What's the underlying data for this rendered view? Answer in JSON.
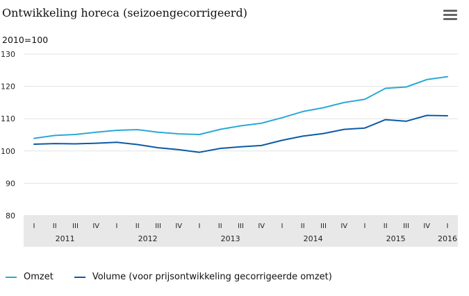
{
  "title": "Ontwikkeling horeca (seizoengecorrigeerd)",
  "menu_icon": "hamburger-menu-icon",
  "chart_data": {
    "type": "line",
    "unit_label": "2010=100",
    "y_axis": {
      "min": 80,
      "max": 130,
      "ticks": [
        80,
        90,
        100,
        110,
        120,
        130
      ]
    },
    "quarter_labels": [
      "I",
      "II",
      "III",
      "IV",
      "I",
      "II",
      "III",
      "IV",
      "I",
      "II",
      "III",
      "IV",
      "I",
      "II",
      "III",
      "IV",
      "I",
      "II",
      "III",
      "IV",
      "I"
    ],
    "year_labels": [
      {
        "label": "2011",
        "quarter_index": 1.5
      },
      {
        "label": "2012",
        "quarter_index": 5.5
      },
      {
        "label": "2013",
        "quarter_index": 9.5
      },
      {
        "label": "2014",
        "quarter_index": 13.5
      },
      {
        "label": "2015",
        "quarter_index": 17.5
      },
      {
        "label": "2016",
        "quarter_index": 20
      }
    ],
    "series": [
      {
        "name": "Omzet",
        "color": "#29a9d6",
        "values": [
          103.9,
          104.8,
          105.1,
          105.8,
          106.4,
          106.6,
          105.8,
          105.3,
          105.1,
          106.7,
          107.8,
          108.6,
          110.3,
          112.2,
          113.4,
          115.0,
          116.0,
          119.4,
          119.8,
          122.1,
          123.0
        ]
      },
      {
        "name": "Volume (voor prijsontwikkeling gecorrigeerde omzet)",
        "color": "#0b5aa6",
        "values": [
          102.1,
          102.3,
          102.2,
          102.4,
          102.7,
          102.0,
          101.0,
          100.4,
          99.6,
          100.8,
          101.3,
          101.7,
          103.3,
          104.6,
          105.4,
          106.7,
          107.1,
          109.7,
          109.2,
          111.0,
          110.9
        ]
      }
    ]
  }
}
